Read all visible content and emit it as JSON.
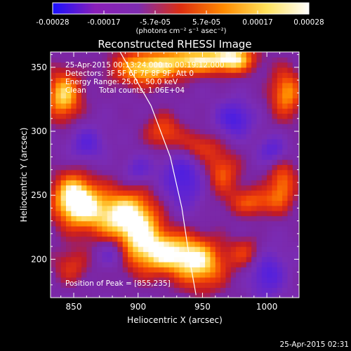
{
  "chart_data": {
    "type": "heatmap",
    "title": "Reconstructed RHESSI Image",
    "xlabel": "Heliocentric X (arcsec)",
    "ylabel": "Heliocentric Y (arcsec)",
    "xlim": [
      832,
      1025
    ],
    "ylim": [
      170,
      362
    ],
    "x_ticks": [
      850,
      900,
      950,
      1000
    ],
    "y_ticks": [
      200,
      250,
      300,
      350
    ],
    "x_tick_labels": [
      "850",
      "900",
      "950",
      "1000"
    ],
    "y_tick_labels": [
      "200",
      "250",
      "300",
      "350"
    ],
    "colorbar": {
      "range": [
        -0.00028,
        0.00028
      ],
      "tick_labels": [
        "-0.00028",
        "-0.00017",
        "-5.7e-05",
        "5.7e-05",
        "0.00017",
        "0.00028"
      ],
      "unit_label": "(photons cm⁻² s⁻¹ asec⁻²)",
      "colors": [
        "#1a10ff",
        "#8a1fb8",
        "#7e2cb0",
        "#dd2e10",
        "#ff8a00",
        "#ffe15a",
        "#ffffff"
      ]
    },
    "annotations": {
      "time_range": "25-Apr-2015 00:13:24.000 to 00:19:12.000",
      "detectors": "Detectors: 3F 5F 6F 7F 8F 9F, Att 0",
      "energy_range": "Energy Range: 25.0 - 50.0 keV",
      "method": "Clean",
      "total_counts": "Total counts: 1.06E+04",
      "peak": "Position of Peak = [855,235]"
    },
    "emission_sources": [
      {
        "x": 850,
        "y": 248,
        "sigma_x": 12,
        "sigma_y": 14,
        "intensity": 1.0
      },
      {
        "x": 878,
        "y": 236,
        "sigma_x": 20,
        "sigma_y": 14,
        "intensity": 0.75
      },
      {
        "x": 900,
        "y": 222,
        "sigma_x": 14,
        "sigma_y": 20,
        "intensity": 0.72
      },
      {
        "x": 925,
        "y": 205,
        "sigma_x": 18,
        "sigma_y": 12,
        "intensity": 0.82
      },
      {
        "x": 950,
        "y": 195,
        "sigma_x": 14,
        "sigma_y": 14,
        "intensity": 0.7
      },
      {
        "x": 905,
        "y": 350,
        "sigma_x": 18,
        "sigma_y": 10,
        "intensity": 0.85
      },
      {
        "x": 945,
        "y": 356,
        "sigma_x": 18,
        "sigma_y": 8,
        "intensity": 0.82
      },
      {
        "x": 975,
        "y": 357,
        "sigma_x": 12,
        "sigma_y": 8,
        "intensity": 0.8
      },
      {
        "x": 842,
        "y": 328,
        "sigma_x": 10,
        "sigma_y": 14,
        "intensity": 0.85
      },
      {
        "x": 1015,
        "y": 330,
        "sigma_x": 9,
        "sigma_y": 14,
        "intensity": 0.7
      },
      {
        "x": 920,
        "y": 300,
        "sigma_x": 10,
        "sigma_y": 10,
        "intensity": 0.55
      },
      {
        "x": 945,
        "y": 288,
        "sigma_x": 12,
        "sigma_y": 9,
        "intensity": 0.55
      },
      {
        "x": 965,
        "y": 268,
        "sigma_x": 10,
        "sigma_y": 12,
        "intensity": 0.55
      },
      {
        "x": 990,
        "y": 245,
        "sigma_x": 14,
        "sigma_y": 8,
        "intensity": 0.55
      },
      {
        "x": 1012,
        "y": 260,
        "sigma_x": 8,
        "sigma_y": 14,
        "intensity": 0.6
      },
      {
        "x": 985,
        "y": 205,
        "sigma_x": 10,
        "sigma_y": 9,
        "intensity": 0.45
      },
      {
        "x": 848,
        "y": 195,
        "sigma_x": 10,
        "sigma_y": 10,
        "intensity": 0.4
      }
    ],
    "negative_sources": [
      {
        "x": 935,
        "y": 265,
        "sigma_x": 12,
        "sigma_y": 18,
        "intensity": -0.6
      },
      {
        "x": 975,
        "y": 310,
        "sigma_x": 10,
        "sigma_y": 10,
        "intensity": -0.6
      },
      {
        "x": 1000,
        "y": 190,
        "sigma_x": 10,
        "sigma_y": 14,
        "intensity": -0.55
      },
      {
        "x": 860,
        "y": 290,
        "sigma_x": 10,
        "sigma_y": 10,
        "intensity": -0.45
      },
      {
        "x": 880,
        "y": 205,
        "sigma_x": 8,
        "sigma_y": 8,
        "intensity": -0.45
      },
      {
        "x": 1005,
        "y": 285,
        "sigma_x": 8,
        "sigma_y": 8,
        "intensity": -0.5
      },
      {
        "x": 900,
        "y": 270,
        "sigma_x": 8,
        "sigma_y": 8,
        "intensity": -0.4
      }
    ],
    "limb_curve": [
      [
        886,
        362
      ],
      [
        910,
        320
      ],
      [
        925,
        280
      ],
      [
        934,
        240
      ],
      [
        940,
        200
      ],
      [
        945,
        172
      ]
    ]
  },
  "footer": {
    "timestamp": "25-Apr-2015 02:31"
  }
}
